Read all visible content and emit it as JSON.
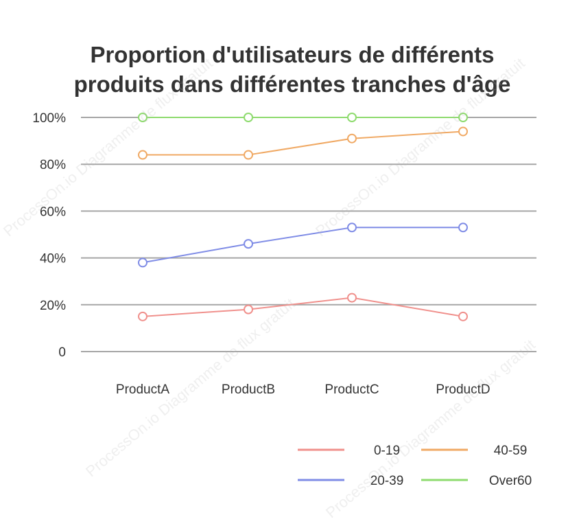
{
  "watermark": "ProcessOn.io Diagramme de flux gratuit",
  "chart_data": {
    "type": "line",
    "title_lines": [
      "Proportion d'utilisateurs de différents",
      "produits dans différentes tranches d'âge"
    ],
    "categories": [
      "ProductA",
      "ProductB",
      "ProductC",
      "ProductD"
    ],
    "y_tick_labels": [
      "0",
      "20%",
      "40%",
      "60%",
      "80%",
      "100%"
    ],
    "ylim": [
      0,
      100
    ],
    "grid": true,
    "legend_position": "bottom-right",
    "series": [
      {
        "name": "0-19",
        "color": "#f0908c",
        "values": [
          15,
          18,
          23,
          15
        ]
      },
      {
        "name": "20-39",
        "color": "#7f8ce6",
        "values": [
          38,
          46,
          53,
          53
        ]
      },
      {
        "name": "40-59",
        "color": "#f0a964",
        "values": [
          84,
          84,
          91,
          94
        ]
      },
      {
        "name": "Over60",
        "color": "#8edb6e",
        "values": [
          100,
          100,
          100,
          100
        ]
      }
    ]
  }
}
